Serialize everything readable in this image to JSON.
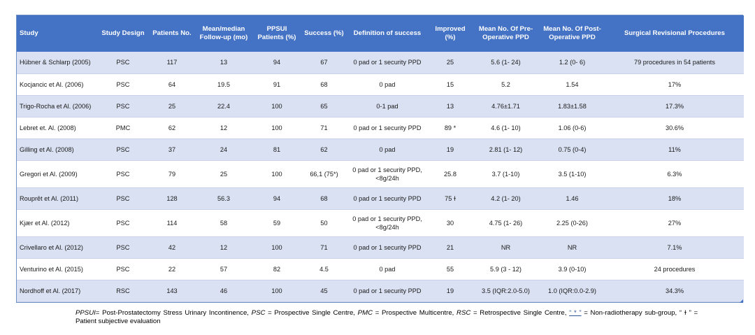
{
  "table": {
    "headers": [
      "Study",
      "Study Design",
      "Patients No.",
      "Mean/median Follow-up (mo)",
      "PPSUI Patients (%)",
      "Success (%)",
      "Definition of success",
      "Improved (%)",
      "Mean No. Of Pre-Operative PPD",
      "Mean No. Of Post-Operative PPD",
      "Surgical Revisional Procedures"
    ],
    "rows": [
      [
        "Hübner & Schlarp (2005)",
        "PSC",
        "117",
        "13",
        "94",
        "67",
        "0 pad or 1 security PPD",
        "25",
        "5.6 (1- 24)",
        "1.2 (0- 6)",
        "79 procedures in 54 patients"
      ],
      [
        "Kocjancic et Al. (2006)",
        "PSC",
        "64",
        "19.5",
        "91",
        "68",
        "0 pad",
        "15",
        "5.2",
        "1.54",
        "17%"
      ],
      [
        "Trigo-Rocha et Al. (2006)",
        "PSC",
        "25",
        "22.4",
        "100",
        "65",
        "0-1 pad",
        "13",
        "4.76±1.71",
        "1.83±1.58",
        "17.3%"
      ],
      [
        "Lebret et. Al. (2008)",
        "PMC",
        "62",
        "12",
        "100",
        "71",
        "0 pad or 1 security PPD",
        "89 *",
        "4.6 (1- 10)",
        "1.06 (0-6)",
        "30.6%"
      ],
      [
        "Gilling et Al. (2008)",
        "PSC",
        "37",
        "24",
        "81",
        "62",
        "0 pad",
        "19",
        "2.81 (1- 12)",
        "0.75 (0-4)",
        "11%"
      ],
      [
        "Gregori et Al. (2009)",
        "PSC",
        "79",
        "25",
        "100",
        "66,1 (75*)",
        "0 pad or 1 security PPD, <8g/24h",
        "25.8",
        "3.7 (1-10)",
        "3.5 (1-10)",
        "6.3%"
      ],
      [
        "Rouprêt et Al. (2011)",
        "PSC",
        "128",
        "56.3",
        "94",
        "68",
        "0 pad or 1 security PPD",
        "75 ɫ",
        "4.2 (1- 20)",
        "1.46",
        "18%"
      ],
      [
        "Kjær et Al. (2012)",
        "PSC",
        "114",
        "58",
        "59",
        "50",
        "0 pad or 1 security PPD, <8g/24h",
        "30",
        "4.75 (1- 26)",
        "2.25 (0-26)",
        "27%"
      ],
      [
        "Crivellaro et Al. (2012)",
        "PSC",
        "42",
        "12",
        "100",
        "71",
        "0 pad or 1 security PPD",
        "21",
        "NR",
        "NR",
        "7.1%"
      ],
      [
        "Venturino et Al. (2015)",
        "PSC",
        "22",
        "57",
        "82",
        "4.5",
        "0 pad",
        "55",
        "5.9 (3 - 12)",
        "3.9 (0-10)",
        "24 procedures"
      ],
      [
        "Nordhoff et Al. (2017)",
        "RSC",
        "143",
        "46",
        "100",
        "45",
        "0 pad or 1 security PPD",
        "19",
        "3.5 (IQR:2.0-5.0)",
        "1.0 (IQR:0.0-2.9)",
        "34.3%"
      ]
    ]
  },
  "footnote": {
    "ppsui_abbr": "PPSUI",
    "ppsui_def": "= Post-Prostatectomy Stress Urinary Incontinence,",
    "psc_abbr": "PSC",
    "psc_def": "= Prospective Single Centre,",
    "pmc_abbr": "PMC",
    "pmc_def": "= Prospective Multicentre,",
    "rsc_abbr": "RSC",
    "rsc_def": "= Retrospective Single Centre,",
    "asterisk_sym": "“ * ”",
    "asterisk_def": "= Non-radiotherapy sub-group,",
    "dagger_sym": "“ ɫ ”",
    "dagger_def": "= Patient subjective evaluation"
  },
  "colors": {
    "header_bg": "#4472c4",
    "header_text": "#ffffff",
    "band_row_bg": "#d9e1f2",
    "plain_row_bg": "#ffffff"
  }
}
